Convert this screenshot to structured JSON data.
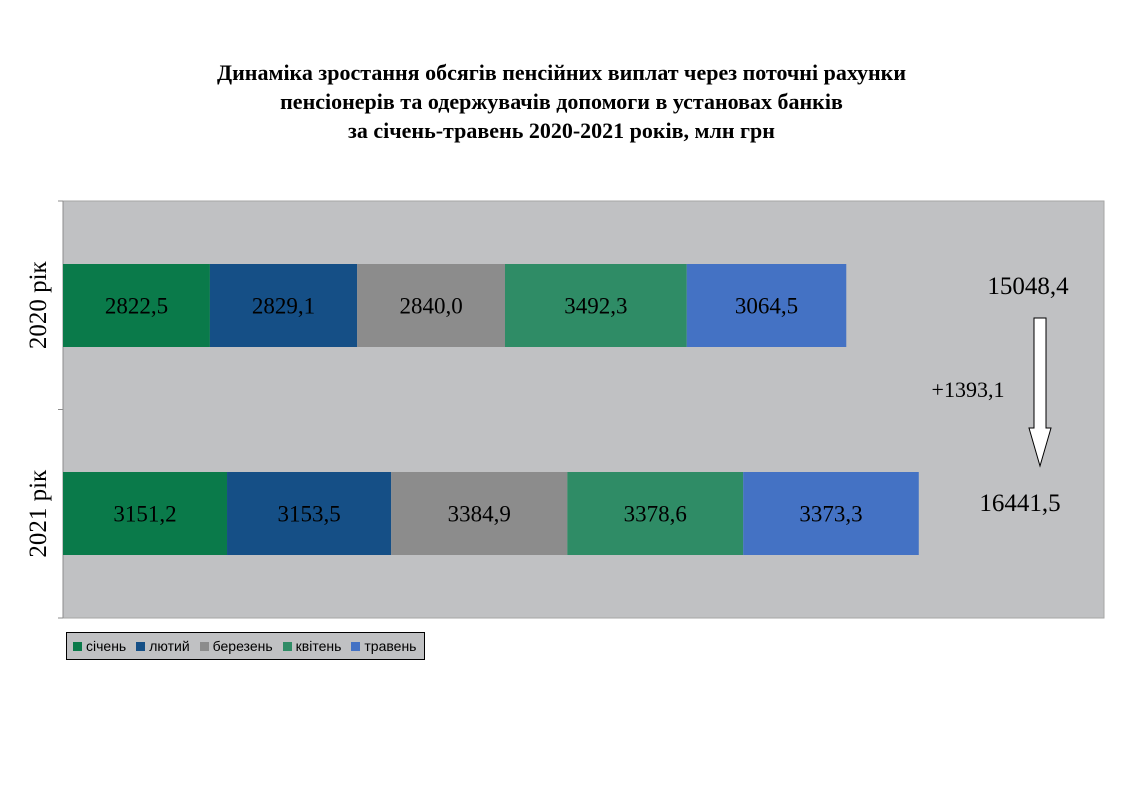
{
  "chart_data": {
    "type": "bar",
    "orientation": "horizontal",
    "stacked": true,
    "title": [
      "Динаміка зростання обсягів пенсійних виплат через поточні рахунки",
      "пенсіонерів та одержувачів допомоги в установах банків",
      "за січень-травень 2020-2021 років, млн грн"
    ],
    "categories": [
      "2020 рік",
      "2021 рік"
    ],
    "series": [
      {
        "name": "січень",
        "color": "#0a7a4a",
        "values": [
          2822.5,
          3151.2
        ],
        "labels": [
          "2822,5",
          "3151,2"
        ]
      },
      {
        "name": "лютий",
        "color": "#154f86",
        "values": [
          2829.1,
          3153.5
        ],
        "labels": [
          "2829,1",
          "3153,5"
        ]
      },
      {
        "name": "березень",
        "color": "#8c8c8c",
        "values": [
          2840.0,
          3384.9
        ],
        "labels": [
          "2840,0",
          "3384,9"
        ]
      },
      {
        "name": "квітень",
        "color": "#2f8c66",
        "values": [
          3492.3,
          3378.6
        ],
        "labels": [
          "3492,3",
          "3378,6"
        ]
      },
      {
        "name": "травень",
        "color": "#4472c4",
        "values": [
          3064.5,
          3373.3
        ],
        "labels": [
          "3064,5",
          "3373,3"
        ]
      }
    ],
    "totals": [
      "15048,4",
      "16441,5"
    ],
    "difference": "+1393,1",
    "xlim": [
      0,
      20000
    ],
    "plot_background": "#c0c1c3",
    "legend_position": "bottom-left"
  }
}
